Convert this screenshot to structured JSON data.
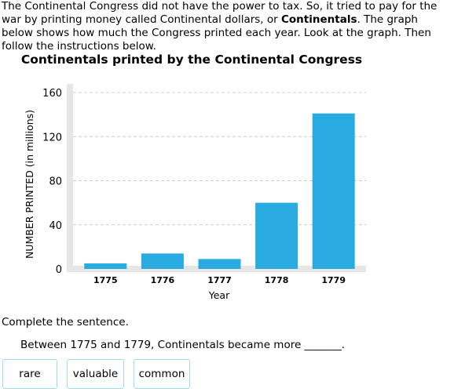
{
  "intro": {
    "part1": "The Continental Congress did not have the power to tax. So, it tried to pay for the war by printing money called Continental dollars, or ",
    "bold": "Continentals",
    "part2": ". The graph below shows how much the Congress printed each year. Look at the graph. Then follow the instructions below."
  },
  "chart_data": {
    "type": "bar",
    "title": "Continentals printed by the Continental Congress",
    "categories": [
      "1775",
      "1776",
      "1777",
      "1778",
      "1779"
    ],
    "values": [
      5,
      14,
      9,
      60,
      141
    ],
    "xlabel": "Year",
    "ylabel": "NUMBER PRINTED (in millions)",
    "ylim": [
      0,
      160
    ],
    "yticks": [
      0,
      40,
      80,
      120,
      160
    ],
    "grid": true,
    "bar_color": "#29abe2"
  },
  "question": {
    "prompt": "Complete the sentence.",
    "sentence": "Between 1775 and 1779, Continentals became more _______.",
    "choices": [
      "rare",
      "valuable",
      "common"
    ]
  }
}
